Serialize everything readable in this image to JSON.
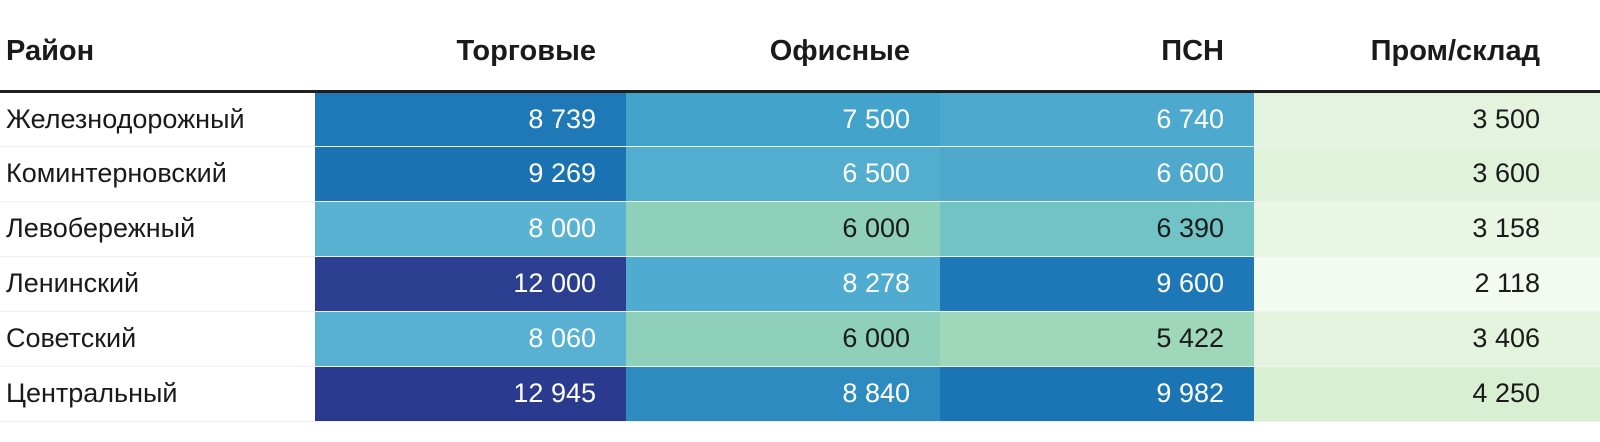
{
  "chart_data": {
    "type": "heatmap",
    "title": "",
    "row_header": "Район",
    "columns": [
      "Торговые",
      "Офисные",
      "ПСН",
      "Пром/склад"
    ],
    "rows": [
      "Железнодорожный",
      "Коминтерновский",
      "Левобережный",
      "Ленинский",
      "Советский",
      "Центральный"
    ],
    "values": [
      [
        8739,
        7500,
        6740,
        3500
      ],
      [
        9269,
        6500,
        6600,
        3600
      ],
      [
        8000,
        6000,
        6390,
        3158
      ],
      [
        12000,
        8278,
        9600,
        2118
      ],
      [
        8060,
        6000,
        5422,
        3406
      ],
      [
        12945,
        8840,
        9982,
        4250
      ]
    ],
    "value_range": [
      2118,
      12945
    ],
    "color_scale": "light green (low) through teal and light blue to dark navy (high)",
    "legend_position": "none",
    "grid": "thin light row separators, dark rule under header"
  },
  "table": {
    "headers": [
      "Район",
      "Торговые",
      "Офисные",
      "ПСН",
      "Пром/склад"
    ],
    "rows": [
      {
        "district": "Железнодорожный",
        "cells": [
          {
            "text": "8 739",
            "bg": "#1e79b6",
            "fg": "#ffffff"
          },
          {
            "text": "7 500",
            "bg": "#43a3ca",
            "fg": "#ffffff"
          },
          {
            "text": "6 740",
            "bg": "#4da9ce",
            "fg": "#ffffff"
          },
          {
            "text": "3 500",
            "bg": "#e3f3dd",
            "fg": "#1a1a1a"
          }
        ]
      },
      {
        "district": "Коминтерновский",
        "cells": [
          {
            "text": "9 269",
            "bg": "#1a72b2",
            "fg": "#ffffff"
          },
          {
            "text": "6 500",
            "bg": "#52adcf",
            "fg": "#ffffff"
          },
          {
            "text": "6 600",
            "bg": "#4ea9cd",
            "fg": "#ffffff"
          },
          {
            "text": "3 600",
            "bg": "#e1f2da",
            "fg": "#1a1a1a"
          }
        ]
      },
      {
        "district": "Левобережный",
        "cells": [
          {
            "text": "8 000",
            "bg": "#5ab2d3",
            "fg": "#ffffff"
          },
          {
            "text": "6 000",
            "bg": "#8fd0ba",
            "fg": "#1a1a1a"
          },
          {
            "text": "6 390",
            "bg": "#72c3c5",
            "fg": "#1a1a1a"
          },
          {
            "text": "3 158",
            "bg": "#e9f6e3",
            "fg": "#1a1a1a"
          }
        ]
      },
      {
        "district": "Ленинский",
        "cells": [
          {
            "text": "12 000",
            "bg": "#2c3e8f",
            "fg": "#ffffff"
          },
          {
            "text": "8 278",
            "bg": "#4fabd0",
            "fg": "#ffffff"
          },
          {
            "text": "9 600",
            "bg": "#1e77b6",
            "fg": "#ffffff"
          },
          {
            "text": "2 118",
            "bg": "#f3faef",
            "fg": "#1a1a1a"
          }
        ]
      },
      {
        "district": "Советский",
        "cells": [
          {
            "text": "8 060",
            "bg": "#58b1d3",
            "fg": "#ffffff"
          },
          {
            "text": "6 000",
            "bg": "#8fd0ba",
            "fg": "#1a1a1a"
          },
          {
            "text": "5 422",
            "bg": "#9ed7b9",
            "fg": "#1a1a1a"
          },
          {
            "text": "3 406",
            "bg": "#e4f3de",
            "fg": "#1a1a1a"
          }
        ]
      },
      {
        "district": "Центральный",
        "cells": [
          {
            "text": "12 945",
            "bg": "#2a3a8e",
            "fg": "#ffffff"
          },
          {
            "text": "8 840",
            "bg": "#2e8bc0",
            "fg": "#ffffff"
          },
          {
            "text": "9 982",
            "bg": "#1b74b4",
            "fg": "#ffffff"
          },
          {
            "text": "4 250",
            "bg": "#d9efd2",
            "fg": "#1a1a1a"
          }
        ]
      }
    ]
  },
  "colors": {
    "header_text": "#1a1a1a",
    "header_rule": "#1f1f1f",
    "row_divider": "#f0f0f0",
    "background": "#ffffff"
  }
}
